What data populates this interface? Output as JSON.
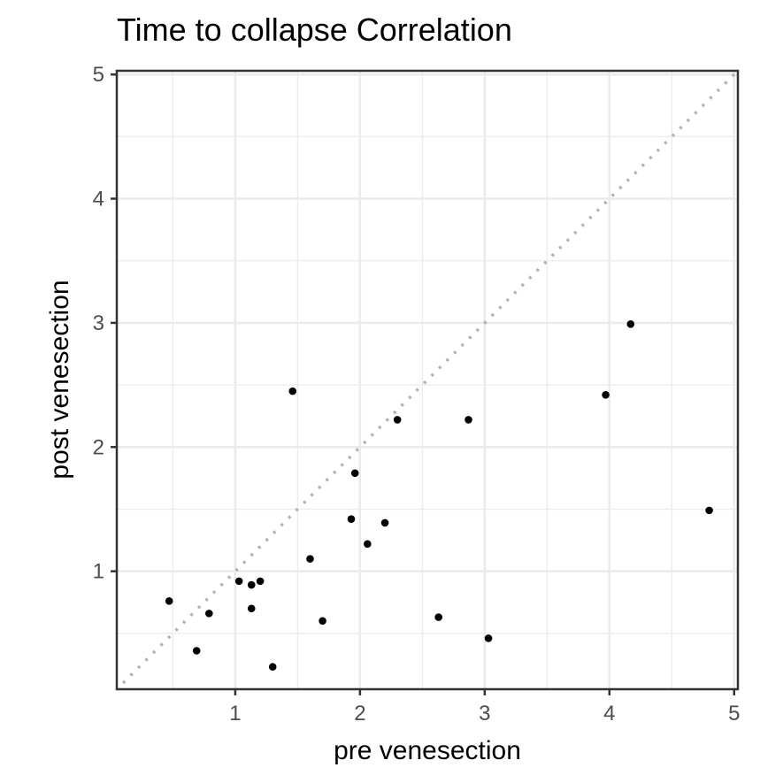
{
  "chart_data": {
    "type": "scatter",
    "title": "Time to collapse   Correlation",
    "xlabel": "pre venesection",
    "ylabel": "post venesection",
    "xlim": [
      0.05,
      5.03
    ],
    "ylim": [
      0.05,
      5.03
    ],
    "x_ticks": [
      1,
      2,
      3,
      4,
      5
    ],
    "y_ticks": [
      1,
      2,
      3,
      4,
      5
    ],
    "grid": true,
    "reference_line": {
      "style": "dotted",
      "slope": 1,
      "intercept": 0,
      "color": "#b3b3b3"
    },
    "point_color": "#000000",
    "points": [
      {
        "x": 0.47,
        "y": 0.76
      },
      {
        "x": 0.69,
        "y": 0.36
      },
      {
        "x": 0.79,
        "y": 0.66
      },
      {
        "x": 1.03,
        "y": 0.92
      },
      {
        "x": 1.13,
        "y": 0.89
      },
      {
        "x": 1.13,
        "y": 0.7
      },
      {
        "x": 1.2,
        "y": 0.92
      },
      {
        "x": 1.3,
        "y": 0.23
      },
      {
        "x": 1.46,
        "y": 2.45
      },
      {
        "x": 1.6,
        "y": 1.1
      },
      {
        "x": 1.7,
        "y": 0.6
      },
      {
        "x": 1.93,
        "y": 1.42
      },
      {
        "x": 1.96,
        "y": 1.79
      },
      {
        "x": 2.06,
        "y": 1.22
      },
      {
        "x": 2.2,
        "y": 1.39
      },
      {
        "x": 2.3,
        "y": 2.22
      },
      {
        "x": 2.63,
        "y": 0.63
      },
      {
        "x": 2.87,
        "y": 2.22
      },
      {
        "x": 3.03,
        "y": 0.46
      },
      {
        "x": 3.97,
        "y": 2.42
      },
      {
        "x": 4.17,
        "y": 2.99
      },
      {
        "x": 4.8,
        "y": 1.49
      }
    ]
  }
}
